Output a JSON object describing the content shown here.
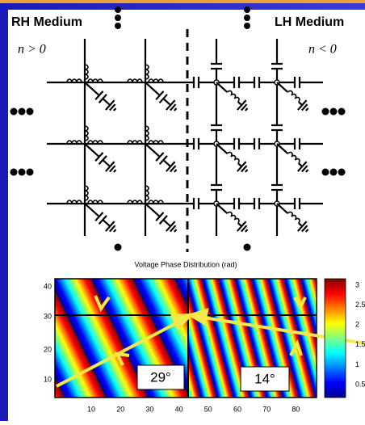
{
  "diagram": {
    "rh_label": "RH Medium",
    "lh_label": "LH Medium",
    "rh_index": "n > 0",
    "lh_index": "n < 0"
  },
  "plot": {
    "title": "Voltage Phase Distribution (rad)",
    "x_ticks": [
      "10",
      "20",
      "30",
      "40",
      "50",
      "60",
      "70",
      "80"
    ],
    "y_ticks": [
      "40",
      "30",
      "20",
      "10"
    ],
    "colorbar_ticks": [
      "3",
      "2.5",
      "2",
      "1.5",
      "1",
      "0.5"
    ],
    "angles": [
      "29°",
      "14°"
    ]
  }
}
